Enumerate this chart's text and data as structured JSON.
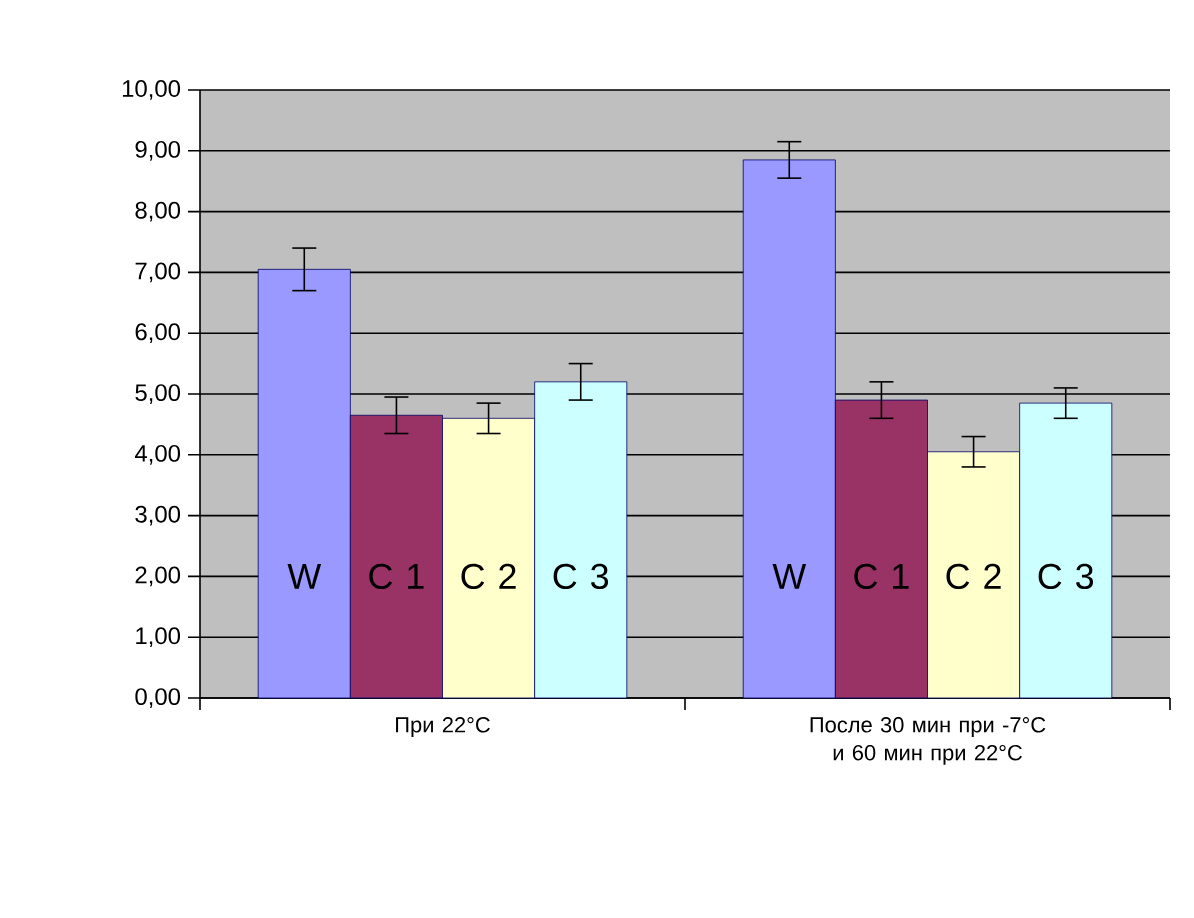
{
  "chart_data": {
    "type": "bar",
    "categories": [
      "При 22°C",
      "После 30 мин при -7°C и 60 мин при 22°C"
    ],
    "series": [
      {
        "name": "W",
        "color": "#9999ff",
        "values": [
          7.05,
          8.85
        ],
        "errors": [
          0.35,
          0.3
        ]
      },
      {
        "name": "C 1",
        "color": "#993366",
        "values": [
          4.65,
          4.9
        ],
        "errors": [
          0.3,
          0.3
        ]
      },
      {
        "name": "C 2",
        "color": "#ffffcc",
        "values": [
          4.6,
          4.05
        ],
        "errors": [
          0.25,
          0.25
        ]
      },
      {
        "name": "C 3",
        "color": "#ccffff",
        "values": [
          5.2,
          4.85
        ],
        "errors": [
          0.3,
          0.25
        ]
      }
    ],
    "ylim": [
      0,
      10
    ],
    "yticks": [
      {
        "value": 0,
        "label": "0,00"
      },
      {
        "value": 1,
        "label": "1,00"
      },
      {
        "value": 2,
        "label": "2,00"
      },
      {
        "value": 3,
        "label": "3,00"
      },
      {
        "value": 4,
        "label": "4,00"
      },
      {
        "value": 5,
        "label": "5,00"
      },
      {
        "value": 6,
        "label": "6,00"
      },
      {
        "value": 7,
        "label": "7,00"
      },
      {
        "value": 8,
        "label": "8,00"
      },
      {
        "value": 9,
        "label": "9,00"
      },
      {
        "value": 10,
        "label": "10,00"
      }
    ],
    "grid": "y"
  }
}
